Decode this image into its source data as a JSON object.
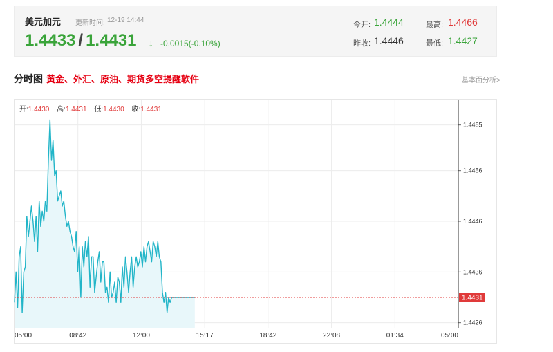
{
  "quote": {
    "name": "美元加元",
    "time_label": "更新时间:",
    "time": "12-19 14:44",
    "bid": "1.4433",
    "separator": "/",
    "ask": "1.4431",
    "arrow": "↓",
    "change": "-0.0015(-0.10%)",
    "open_label": "今开:",
    "open": "1.4444",
    "high_label": "最高:",
    "high": "1.4466",
    "prev_close_label": "昨收:",
    "prev_close": "1.4446",
    "low_label": "最低:",
    "low": "1.4427",
    "colors": {
      "up": "#e03a3a",
      "down": "#3aa43a",
      "neutral": "#333333"
    }
  },
  "section": {
    "title": "分时图",
    "promo": "黄金、外汇、原油、期货多空提醒软件",
    "basic_analysis": "基本面分析>"
  },
  "ohlc": {
    "open_label": "开:",
    "open": "1.4430",
    "high_label": "高:",
    "high": "1.4431",
    "low_label": "低:",
    "low": "1.4430",
    "close_label": "收:",
    "close": "1.4431"
  },
  "chart_data": {
    "type": "area",
    "title": "",
    "xlabel": "",
    "ylabel": "",
    "x_ticks": [
      "05:00",
      "08:42",
      "12:00",
      "15:17",
      "18:42",
      "22:08",
      "01:34",
      "05:00"
    ],
    "y_ticks": [
      1.4465,
      1.4456,
      1.4446,
      1.4436,
      1.4426
    ],
    "ylim": [
      1.4425,
      1.447
    ],
    "x_range_minutes": [
      0,
      1440
    ],
    "current_price_label": "1.4431",
    "current_price": 1.4431,
    "grid": true,
    "line_color": "#22b5c8",
    "fill_color": "#e8f7fa",
    "ref_line_color": "#e03a3a",
    "series": [
      {
        "x": [
          0,
          5,
          10,
          15,
          20,
          25,
          30,
          35,
          40,
          45,
          50,
          55,
          60,
          65,
          70,
          75,
          80,
          85,
          90,
          95,
          100,
          105,
          110,
          115,
          120,
          125,
          130,
          135,
          140,
          145,
          150,
          155,
          160,
          165,
          170,
          175,
          180,
          185,
          190,
          195,
          200,
          205,
          210,
          215,
          220,
          225,
          230,
          235,
          240,
          245,
          250,
          255,
          260,
          265,
          270,
          275,
          280,
          285,
          290,
          295,
          300,
          305,
          310,
          315,
          320,
          325,
          330,
          335,
          340,
          345,
          350,
          355,
          360,
          365,
          370,
          375,
          380,
          385,
          390,
          395,
          400,
          405,
          410,
          415,
          420,
          425,
          430,
          435,
          440,
          445,
          450,
          455,
          460,
          465,
          470,
          475,
          480,
          485,
          490,
          495,
          500,
          505,
          510,
          515,
          520,
          525,
          530,
          535,
          540,
          545,
          550,
          555,
          560,
          565,
          570,
          575,
          580,
          585
        ],
        "values": [
          1.443,
          1.4436,
          1.4429,
          1.4439,
          1.4441,
          1.4428,
          1.4436,
          1.4437,
          1.4447,
          1.4443,
          1.4446,
          1.4449,
          1.4446,
          1.4442,
          1.4447,
          1.444,
          1.445,
          1.4445,
          1.4448,
          1.4446,
          1.445,
          1.4448,
          1.4458,
          1.4466,
          1.4458,
          1.4462,
          1.4455,
          1.4456,
          1.445,
          1.4451,
          1.4452,
          1.4449,
          1.445,
          1.4447,
          1.4445,
          1.4446,
          1.4444,
          1.4443,
          1.4441,
          1.444,
          1.4444,
          1.4436,
          1.4441,
          1.4431,
          1.4441,
          1.4437,
          1.4442,
          1.4439,
          1.4443,
          1.4433,
          1.4439,
          1.4439,
          1.4432,
          1.4435,
          1.4438,
          1.444,
          1.4434,
          1.4438,
          1.4438,
          1.4432,
          1.4433,
          1.443,
          1.4436,
          1.4431,
          1.4432,
          1.4434,
          1.443,
          1.4435,
          1.4434,
          1.443,
          1.4437,
          1.4433,
          1.4439,
          1.4436,
          1.4432,
          1.4436,
          1.4439,
          1.4433,
          1.4437,
          1.4439,
          1.4437,
          1.4438,
          1.444,
          1.4437,
          1.4441,
          1.4438,
          1.4441,
          1.4442,
          1.444,
          1.4438,
          1.4442,
          1.4441,
          1.4439,
          1.4442,
          1.4439,
          1.4438,
          1.4432,
          1.443,
          1.4432,
          1.4428,
          1.4431,
          1.443,
          1.4431,
          1.4431,
          1.4431,
          1.4431,
          1.4431,
          1.4431,
          1.4431,
          1.4431,
          1.4431,
          1.4431,
          1.4431,
          1.4431,
          1.4431,
          1.4431,
          1.4431,
          1.4431
        ]
      }
    ]
  }
}
